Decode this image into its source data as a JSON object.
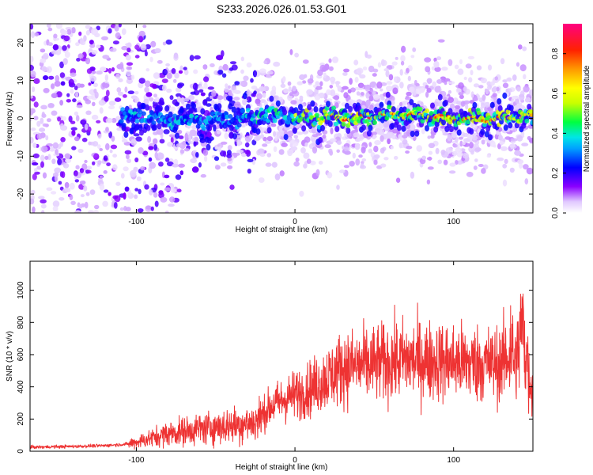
{
  "chart_data": [
    {
      "type": "heatmap",
      "title": "S233.2026.026.01.53.G01",
      "xlabel": "Height of straight line (km)",
      "ylabel": "Frequency (Hz)",
      "xlim": [
        -167,
        150
      ],
      "ylim": [
        -25,
        25
      ],
      "xticks": [
        -100,
        0,
        100
      ],
      "yticks": [
        -20,
        -10,
        0,
        10,
        20
      ],
      "colorbar": {
        "label": "Normalized spectral amplitude",
        "range": [
          0,
          0.95
        ],
        "ticks": [
          0,
          0.2,
          0.4,
          0.6,
          0.8
        ],
        "tick_labels": [
          "0.0",
          "0.2",
          "0.4",
          "0.6",
          "0.8"
        ]
      },
      "signal_center_frequency_hz": [
        [
          -100,
          0.5
        ],
        [
          -80,
          -0.5
        ],
        [
          -60,
          -0.3
        ],
        [
          -40,
          -0.2
        ],
        [
          -20,
          0.8
        ],
        [
          0,
          0.5
        ],
        [
          20,
          0.0
        ],
        [
          40,
          0.2
        ],
        [
          60,
          1.0
        ],
        [
          80,
          0.8
        ],
        [
          100,
          0.0
        ],
        [
          120,
          -0.3
        ],
        [
          140,
          0.3
        ]
      ]
    },
    {
      "type": "line",
      "xlabel": "Height of straight line (km)",
      "ylabel": "SNR (10 * v/v)",
      "xlim": [
        -167,
        150
      ],
      "ylim": [
        0,
        1180
      ],
      "xticks": [
        -100,
        0,
        100
      ],
      "yticks": [
        0,
        200,
        400,
        600,
        800,
        1000
      ],
      "series": [
        {
          "name": "SNR",
          "color": "#ee3333",
          "x": [
            -167,
            -140,
            -120,
            -105,
            -95,
            -80,
            -60,
            -40,
            -25,
            -15,
            -5,
            10,
            30,
            50,
            70,
            90,
            110,
            130,
            135,
            140,
            143,
            145,
            148,
            150
          ],
          "y": [
            25,
            30,
            35,
            45,
            70,
            110,
            140,
            160,
            180,
            280,
            330,
            390,
            520,
            540,
            570,
            560,
            550,
            540,
            600,
            560,
            820,
            600,
            420,
            440
          ]
        }
      ]
    }
  ]
}
